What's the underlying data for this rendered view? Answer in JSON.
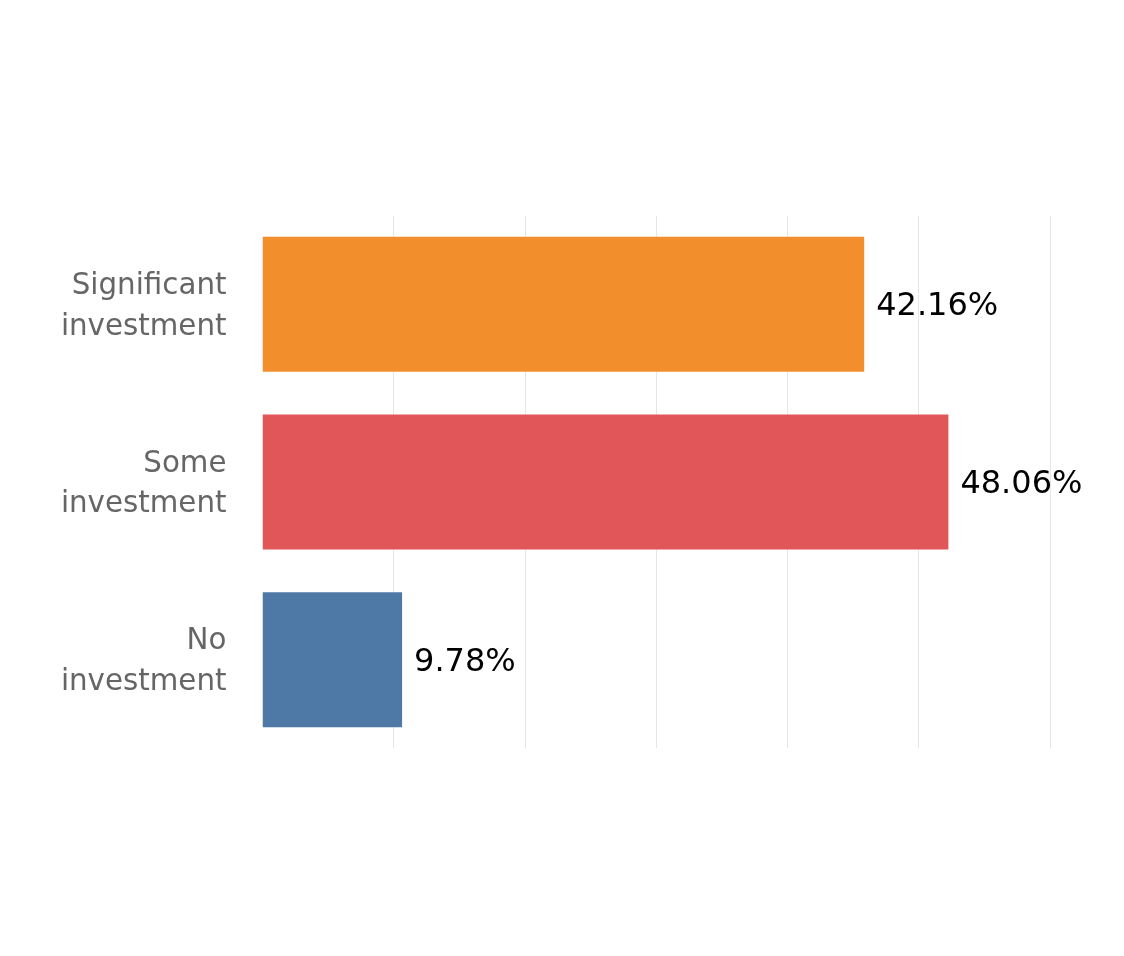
{
  "chart_data": {
    "type": "bar",
    "orientation": "horizontal",
    "categories": [
      "Significant\ninvestment",
      "Some\ninvestment",
      "No\ninvestment"
    ],
    "values": [
      42.16,
      48.06,
      9.78
    ],
    "colors": [
      "#f28e2b",
      "#e15759",
      "#4e79a7"
    ],
    "value_labels": [
      "42.16%",
      "48.06%",
      "9.78%"
    ],
    "xticks": [
      {
        "value": 9.2,
        "label": null
      },
      {
        "value": 18.4,
        "label": null
      },
      {
        "value": 27.6,
        "label": null
      },
      {
        "value": 36.8,
        "label": null
      },
      {
        "value": 46,
        "label": null
      },
      {
        "value": 55.2,
        "label": null
      }
    ],
    "grid": "x",
    "tick_labels": "y"
  }
}
